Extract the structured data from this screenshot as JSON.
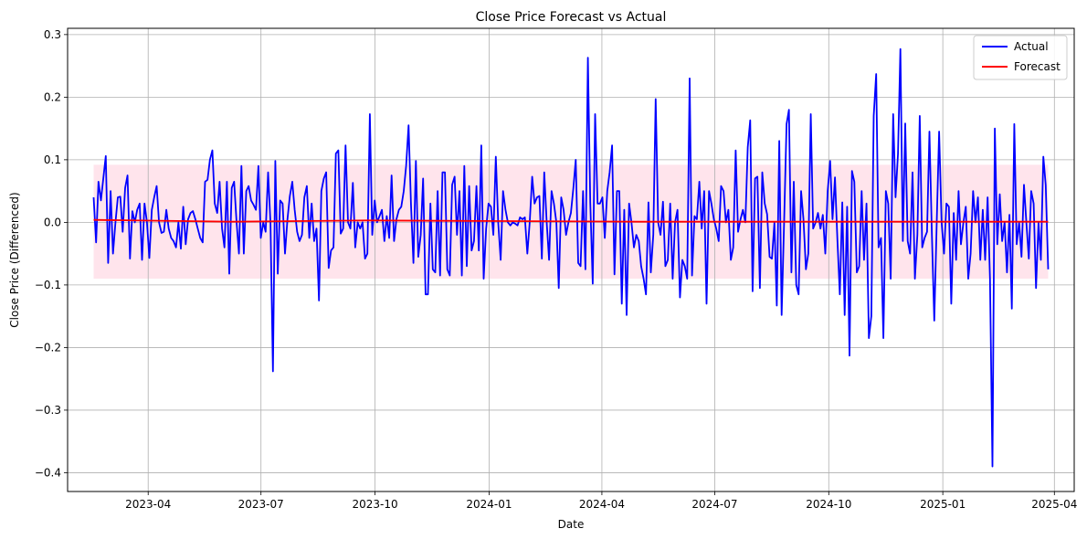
{
  "chart_data": {
    "type": "line",
    "title": "Close Price Forecast vs Actual",
    "xlabel": "Date",
    "ylabel": "Close Price (Differenced)",
    "x_range": [
      "2023-02-16",
      "2025-03-27"
    ],
    "xlim": [
      "2023-01-26",
      "2025-04-17"
    ],
    "ylim": [
      -0.43,
      0.31
    ],
    "grid": true,
    "legend_position": "top-right",
    "x_ticks": [
      "2023-04-01",
      "2023-07-01",
      "2023-10-01",
      "2024-01-01",
      "2024-04-01",
      "2024-07-01",
      "2024-10-01",
      "2025-01-01",
      "2025-04-01"
    ],
    "x_tick_labels": [
      "2023-04",
      "2023-07",
      "2023-10",
      "2024-01",
      "2024-04",
      "2024-07",
      "2024-10",
      "2025-01",
      "2025-04"
    ],
    "y_ticks": [
      -0.4,
      -0.3,
      -0.2,
      -0.1,
      0.0,
      0.1,
      0.2,
      0.3
    ],
    "y_tick_labels": [
      "−0.4",
      "−0.3",
      "−0.2",
      "−0.1",
      "0.0",
      "0.1",
      "0.2",
      "0.3"
    ],
    "confidence_band": {
      "lower": -0.09,
      "upper": 0.092,
      "color": "#ffe4ec"
    },
    "series": [
      {
        "name": "Actual",
        "color": "#0000ff",
        "values": [
          0.04,
          -0.032,
          0.065,
          0.035,
          0.07,
          0.106,
          -0.065,
          0.05,
          -0.05,
          0.0,
          0.04,
          0.041,
          -0.015,
          0.055,
          0.075,
          -0.058,
          0.018,
          0.0,
          0.02,
          0.03,
          -0.06,
          0.03,
          0.0,
          -0.057,
          0.02,
          0.04,
          0.058,
          0.0,
          -0.017,
          -0.015,
          0.02,
          -0.01,
          -0.025,
          -0.03,
          -0.04,
          0.0,
          -0.042,
          0.025,
          -0.035,
          0.005,
          0.015,
          0.018,
          0.005,
          -0.01,
          -0.025,
          -0.032,
          0.065,
          0.068,
          0.1,
          0.115,
          0.03,
          0.015,
          0.065,
          -0.01,
          -0.04,
          0.065,
          -0.082,
          0.055,
          0.065,
          0.0,
          -0.05,
          0.09,
          -0.05,
          0.05,
          0.058,
          0.035,
          0.028,
          0.02,
          0.09,
          -0.025,
          0.0,
          -0.015,
          0.08,
          0.0,
          -0.238,
          0.098,
          -0.082,
          0.035,
          0.03,
          -0.05,
          0.005,
          0.042,
          0.065,
          0.02,
          -0.015,
          -0.03,
          -0.02,
          0.04,
          0.058,
          -0.025,
          0.03,
          -0.03,
          -0.01,
          -0.125,
          0.05,
          0.07,
          0.08,
          -0.073,
          -0.045,
          -0.04,
          0.11,
          0.115,
          -0.018,
          -0.01,
          0.123,
          0.0,
          -0.01,
          0.063,
          -0.04,
          0.0,
          -0.01,
          0.0,
          -0.058,
          -0.05,
          0.173,
          -0.02,
          0.035,
          0.0,
          0.01,
          0.02,
          -0.03,
          0.01,
          -0.025,
          0.075,
          -0.03,
          0.005,
          0.02,
          0.025,
          0.05,
          0.09,
          0.155,
          0.03,
          -0.065,
          0.098,
          -0.055,
          -0.02,
          0.07,
          -0.115,
          -0.115,
          0.03,
          -0.075,
          -0.08,
          0.05,
          -0.085,
          0.08,
          0.08,
          -0.075,
          -0.085,
          0.06,
          0.073,
          -0.02,
          0.05,
          -0.085,
          0.09,
          -0.07,
          0.058,
          -0.045,
          -0.03,
          0.058,
          -0.045,
          0.123,
          -0.09,
          -0.01,
          0.03,
          0.025,
          -0.02,
          0.105,
          0.0,
          -0.06,
          0.05,
          0.02,
          0.0,
          -0.005,
          0.0,
          -0.002,
          -0.005,
          0.008,
          0.005,
          0.008,
          -0.05,
          0.0,
          0.073,
          0.03,
          0.04,
          0.042,
          -0.058,
          0.08,
          0.0,
          -0.06,
          0.05,
          0.03,
          0.0,
          -0.105,
          0.04,
          0.02,
          -0.02,
          0.0,
          0.015,
          0.055,
          0.1,
          -0.065,
          -0.07,
          0.05,
          -0.075,
          0.263,
          0.032,
          -0.098,
          0.173,
          0.03,
          0.03,
          0.04,
          -0.025,
          0.05,
          0.08,
          0.123,
          -0.083,
          0.05,
          0.05,
          -0.13,
          0.02,
          -0.148,
          0.03,
          0.0,
          -0.04,
          -0.02,
          -0.03,
          -0.07,
          -0.09,
          -0.115,
          0.032,
          -0.08,
          -0.02,
          0.197,
          0.0,
          -0.02,
          0.033,
          -0.07,
          -0.06,
          0.03,
          -0.09,
          0.0,
          0.02,
          -0.12,
          -0.06,
          -0.07,
          -0.09,
          0.23,
          -0.085,
          0.01,
          0.005,
          0.065,
          -0.01,
          0.05,
          -0.13,
          0.05,
          0.03,
          0.005,
          -0.01,
          -0.03,
          0.058,
          0.05,
          0.0,
          0.02,
          -0.06,
          -0.04,
          0.115,
          -0.015,
          0.005,
          0.02,
          0.0,
          0.12,
          0.163,
          -0.11,
          0.07,
          0.073,
          -0.105,
          0.08,
          0.03,
          0.013,
          -0.055,
          -0.058,
          0.0,
          -0.133,
          0.13,
          -0.148,
          0.0,
          0.157,
          0.18,
          -0.08,
          0.065,
          -0.1,
          -0.115,
          0.05,
          0.005,
          -0.075,
          -0.05,
          0.173,
          -0.01,
          0.0,
          0.015,
          -0.01,
          0.012,
          -0.05,
          0.05,
          0.098,
          0.005,
          0.072,
          -0.03,
          -0.115,
          0.032,
          -0.148,
          0.025,
          -0.213,
          0.082,
          0.065,
          -0.08,
          -0.07,
          0.05,
          -0.06,
          0.03,
          -0.185,
          -0.15,
          0.17,
          0.237,
          -0.04,
          -0.025,
          -0.185,
          0.05,
          0.03,
          -0.09,
          0.173,
          0.04,
          0.11,
          0.277,
          -0.03,
          0.158,
          -0.03,
          -0.05,
          0.08,
          -0.09,
          -0.02,
          0.17,
          -0.04,
          -0.025,
          -0.015,
          0.145,
          -0.02,
          -0.157,
          0.0,
          0.145,
          0.0,
          -0.05,
          0.03,
          0.025,
          -0.13,
          0.015,
          -0.06,
          0.05,
          -0.035,
          0.0,
          0.025,
          -0.09,
          -0.05,
          0.05,
          0.0,
          0.04,
          -0.06,
          0.02,
          -0.06,
          0.04,
          -0.09,
          -0.39,
          0.15,
          -0.035,
          0.045,
          -0.03,
          0.0,
          -0.08,
          0.012,
          -0.138,
          0.157,
          -0.035,
          0.0,
          -0.055,
          0.06,
          0.0,
          -0.058,
          0.05,
          0.03,
          -0.105,
          0.0,
          -0.06,
          0.105,
          0.06,
          -0.075
        ]
      },
      {
        "name": "Forecast",
        "color": "#ff0000",
        "values": [
          0.004,
          0.001,
          0.003,
          0.002,
          0.001,
          0.001,
          0.001,
          0.001
        ]
      }
    ]
  }
}
